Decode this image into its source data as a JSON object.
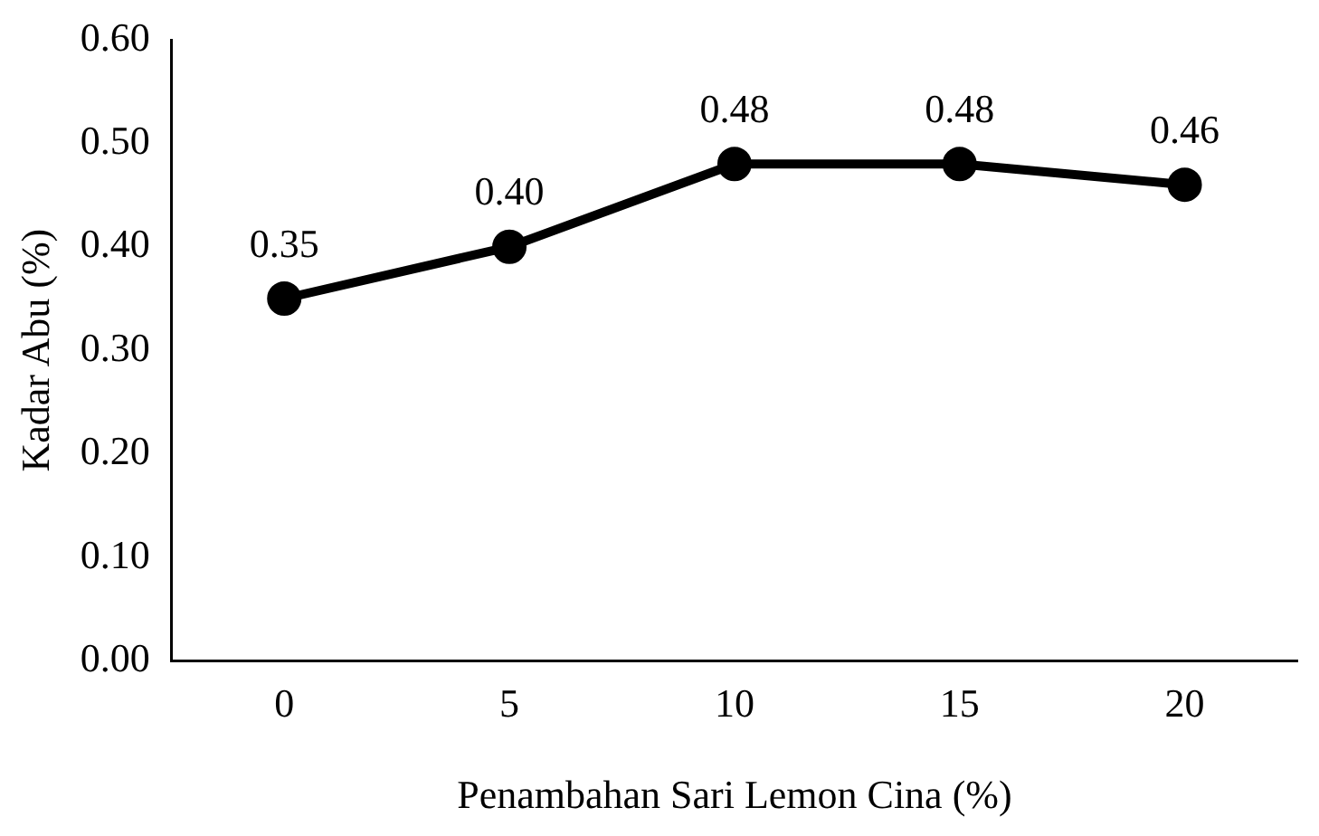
{
  "chart_data": {
    "type": "line",
    "xlabel": "Penambahan Sari Lemon Cina (%)",
    "ylabel": "Kadar Abu (%)",
    "categories": [
      "0",
      "5",
      "10",
      "15",
      "20"
    ],
    "series": [
      {
        "color": "#000000",
        "values": [
          0.35,
          0.4,
          0.48,
          0.48,
          0.46
        ],
        "value_labels": [
          "0.35",
          "0.40",
          "0.48",
          "0.48",
          "0.46"
        ]
      }
    ],
    "ylim": [
      0,
      0.6
    ],
    "yticks": [
      {
        "value": 0,
        "label": "0.00"
      },
      {
        "value": 0.1,
        "label": "0.10"
      },
      {
        "value": 0.2,
        "label": "0.20"
      },
      {
        "value": 0.3,
        "label": "0.30"
      },
      {
        "value": 0.4,
        "label": "0.40"
      },
      {
        "value": 0.5,
        "label": "0.50"
      },
      {
        "value": 0.6,
        "label": "0.60"
      }
    ],
    "grid": false,
    "legend": false,
    "marker": "circle",
    "line_style": "solid"
  }
}
